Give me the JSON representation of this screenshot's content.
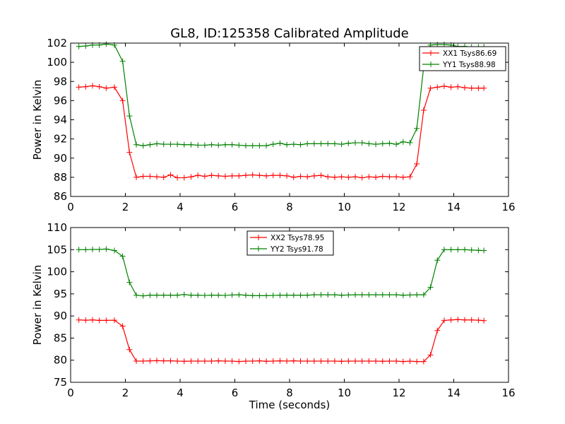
{
  "chart_data": [
    {
      "type": "line",
      "title": "GL8, ID:125358 Calibrated Amplitude",
      "xlabel": "",
      "ylabel": "Power in Kelvin",
      "xlim": [
        0,
        16
      ],
      "ylim": [
        86,
        102
      ],
      "xticks": [
        "0",
        "2",
        "4",
        "6",
        "8",
        "10",
        "12",
        "14",
        "16"
      ],
      "yticks": [
        "86",
        "88",
        "90",
        "92",
        "94",
        "96",
        "98",
        "100",
        "102"
      ],
      "legend_position": "top-right",
      "grid": false,
      "x": [
        0.3,
        0.55,
        0.8,
        1.05,
        1.3,
        1.6,
        1.9,
        2.15,
        2.4,
        2.65,
        2.9,
        3.15,
        3.4,
        3.65,
        3.9,
        4.15,
        4.4,
        4.65,
        4.9,
        5.15,
        5.4,
        5.65,
        5.9,
        6.15,
        6.4,
        6.65,
        6.9,
        7.15,
        7.4,
        7.65,
        7.9,
        8.15,
        8.4,
        8.65,
        8.9,
        9.15,
        9.4,
        9.65,
        9.9,
        10.15,
        10.4,
        10.65,
        10.9,
        11.15,
        11.4,
        11.65,
        11.9,
        12.15,
        12.4,
        12.65,
        12.9,
        13.15,
        13.4,
        13.65,
        13.9,
        14.15,
        14.4,
        14.65,
        14.9,
        15.1
      ],
      "series": [
        {
          "name": "XX1 Tsys86.69",
          "color": "#ff0000",
          "values": [
            97.4,
            97.45,
            97.55,
            97.45,
            97.3,
            97.4,
            96.0,
            90.6,
            88.0,
            88.1,
            88.1,
            88.05,
            88.0,
            88.25,
            87.95,
            87.95,
            88.05,
            88.2,
            88.1,
            88.2,
            88.15,
            88.1,
            88.15,
            88.15,
            88.2,
            88.25,
            88.2,
            88.15,
            88.2,
            88.2,
            88.15,
            88.0,
            88.1,
            88.05,
            88.15,
            88.2,
            88.05,
            88.0,
            88.05,
            88.0,
            88.05,
            87.95,
            88.05,
            88.0,
            88.1,
            88.05,
            88.05,
            88.0,
            88.05,
            89.4,
            95.0,
            97.3,
            97.4,
            97.5,
            97.4,
            97.45,
            97.35,
            97.3,
            97.3,
            97.3
          ]
        },
        {
          "name": "YY1 Tsys88.98",
          "color": "#008000",
          "values": [
            101.65,
            101.7,
            101.8,
            101.8,
            101.9,
            101.8,
            100.1,
            94.4,
            91.4,
            91.3,
            91.4,
            91.5,
            91.45,
            91.45,
            91.45,
            91.4,
            91.4,
            91.35,
            91.35,
            91.4,
            91.35,
            91.4,
            91.4,
            91.35,
            91.3,
            91.3,
            91.3,
            91.3,
            91.45,
            91.55,
            91.4,
            91.45,
            91.4,
            91.5,
            91.5,
            91.5,
            91.5,
            91.5,
            91.45,
            91.55,
            91.6,
            91.6,
            91.5,
            91.45,
            91.5,
            91.55,
            91.45,
            91.7,
            91.6,
            93.1,
            99.5,
            101.8,
            101.85,
            101.85,
            101.8,
            101.65,
            101.65,
            101.6,
            101.6,
            101.6
          ]
        }
      ]
    },
    {
      "type": "line",
      "title": "",
      "xlabel": "Time (seconds)",
      "ylabel": "Power in Kelvin",
      "xlim": [
        0,
        16
      ],
      "ylim": [
        75,
        110
      ],
      "xticks": [
        "0",
        "2",
        "4",
        "6",
        "8",
        "10",
        "12",
        "14",
        "16"
      ],
      "yticks": [
        "75",
        "80",
        "85",
        "90",
        "95",
        "100",
        "105",
        "110"
      ],
      "legend_position": "top-center",
      "grid": false,
      "x": [
        0.3,
        0.55,
        0.8,
        1.05,
        1.3,
        1.6,
        1.9,
        2.15,
        2.4,
        2.65,
        2.9,
        3.15,
        3.4,
        3.65,
        3.9,
        4.15,
        4.4,
        4.65,
        4.9,
        5.15,
        5.4,
        5.65,
        5.9,
        6.15,
        6.4,
        6.65,
        6.9,
        7.15,
        7.4,
        7.65,
        7.9,
        8.15,
        8.4,
        8.65,
        8.9,
        9.15,
        9.4,
        9.65,
        9.9,
        10.15,
        10.4,
        10.65,
        10.9,
        11.15,
        11.4,
        11.65,
        11.9,
        12.15,
        12.4,
        12.65,
        12.9,
        13.15,
        13.4,
        13.65,
        13.9,
        14.15,
        14.4,
        14.65,
        14.9,
        15.1
      ],
      "series": [
        {
          "name": "XX2 Tsys78.95",
          "color": "#ff0000",
          "values": [
            89.1,
            89.05,
            89.1,
            89.0,
            89.0,
            89.05,
            87.7,
            82.4,
            79.8,
            79.8,
            79.85,
            79.9,
            79.85,
            79.85,
            79.8,
            79.75,
            79.8,
            79.8,
            79.8,
            79.8,
            79.85,
            79.8,
            79.8,
            79.7,
            79.8,
            79.8,
            79.85,
            79.75,
            79.8,
            79.85,
            79.8,
            79.85,
            79.8,
            79.8,
            79.8,
            79.8,
            79.8,
            79.8,
            79.75,
            79.8,
            79.8,
            79.8,
            79.8,
            79.8,
            79.75,
            79.8,
            79.8,
            79.7,
            79.8,
            79.7,
            79.7,
            81.2,
            86.7,
            89.0,
            89.1,
            89.2,
            89.1,
            89.1,
            89.05,
            88.95
          ]
        },
        {
          "name": "YY2 Tsys91.78",
          "color": "#008000",
          "values": [
            105.0,
            105.0,
            105.05,
            105.05,
            105.15,
            104.8,
            103.5,
            97.6,
            94.7,
            94.55,
            94.7,
            94.7,
            94.7,
            94.7,
            94.7,
            94.85,
            94.7,
            94.7,
            94.65,
            94.7,
            94.7,
            94.65,
            94.75,
            94.8,
            94.7,
            94.6,
            94.6,
            94.6,
            94.65,
            94.7,
            94.7,
            94.7,
            94.7,
            94.7,
            94.8,
            94.8,
            94.8,
            94.8,
            94.7,
            94.75,
            94.8,
            94.8,
            94.8,
            94.8,
            94.8,
            94.8,
            94.8,
            94.7,
            94.75,
            94.8,
            94.8,
            96.5,
            102.6,
            105.0,
            105.0,
            105.0,
            105.0,
            104.9,
            104.85,
            104.8
          ]
        }
      ]
    }
  ]
}
